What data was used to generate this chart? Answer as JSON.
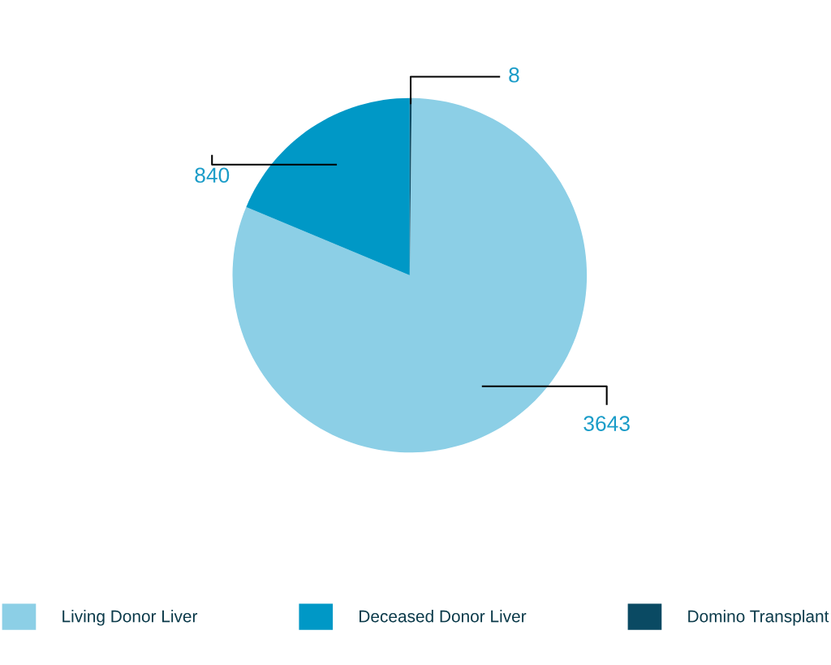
{
  "chart_data": {
    "type": "pie",
    "categories": [
      "Living Donor Liver",
      "Deceased Donor Liver",
      "Domino Transplant"
    ],
    "values": [
      3643,
      840,
      8
    ],
    "colors": [
      "#8ccfe6",
      "#0098c6",
      "#0a4a63"
    ],
    "data_labels": true,
    "legend": "bottom"
  }
}
